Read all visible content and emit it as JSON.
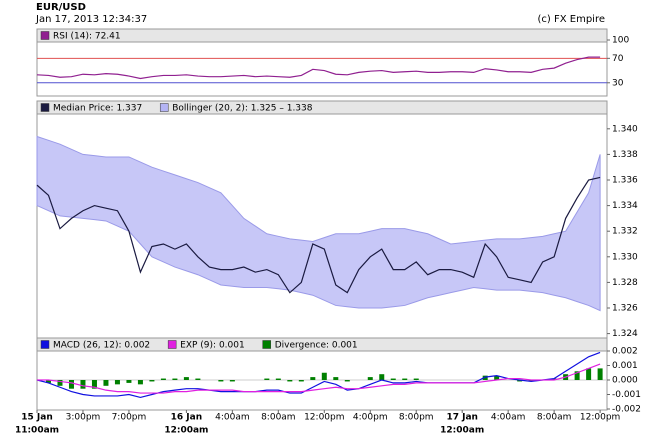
{
  "header": {
    "title": "EUR/USD",
    "timestamp": "Jan 17, 2013 12:34:37",
    "credit": "(c) FX Empire"
  },
  "chart_data": [
    {
      "type": "line",
      "xlim": [
        0,
        49.6
      ],
      "ylim": [
        10,
        100
      ],
      "yticks": [
        100,
        70,
        30
      ],
      "levels": [
        {
          "value": 70,
          "color": "#e05050"
        },
        {
          "value": 30,
          "color": "#5050d0"
        }
      ],
      "x": [
        0,
        1,
        2,
        3,
        4,
        5,
        6,
        7,
        8,
        9,
        10,
        11,
        12,
        13,
        14,
        15,
        16,
        17,
        18,
        19,
        20,
        21,
        22,
        23,
        24,
        25,
        26,
        27,
        28,
        29,
        30,
        31,
        32,
        33,
        34,
        35,
        36,
        37,
        38,
        39,
        40,
        41,
        42,
        43,
        44,
        45,
        46,
        47,
        48,
        49
      ],
      "series": [
        {
          "name": "RSI (14): 72.41",
          "color": "#902090",
          "type": "line",
          "values": [
            43,
            42,
            39,
            40,
            44,
            43,
            45,
            44,
            41,
            37,
            40,
            42,
            42,
            43,
            41,
            40,
            40,
            41,
            42,
            40,
            41,
            40,
            39,
            42,
            52,
            50,
            44,
            43,
            47,
            49,
            50,
            47,
            48,
            49,
            47,
            47,
            48,
            48,
            47,
            53,
            51,
            48,
            48,
            47,
            52,
            54,
            62,
            68,
            72,
            72
          ]
        }
      ]
    },
    {
      "type": "line",
      "xlim": [
        0,
        49.6
      ],
      "ylim": [
        1.3235,
        1.341
      ],
      "yticks": [
        {
          "value": 1.34,
          "label": "1.340"
        },
        {
          "value": 1.338,
          "label": "1.338"
        },
        {
          "value": 1.336,
          "label": "1.336"
        },
        {
          "value": 1.334,
          "label": "1.334"
        },
        {
          "value": 1.332,
          "label": "1.332"
        },
        {
          "value": 1.33,
          "label": "1.330"
        },
        {
          "value": 1.328,
          "label": "1.328"
        },
        {
          "value": 1.326,
          "label": "1.326"
        },
        {
          "value": 1.324,
          "label": "1.324"
        }
      ],
      "x": [
        0,
        1,
        2,
        3,
        4,
        5,
        6,
        7,
        8,
        9,
        10,
        11,
        12,
        13,
        14,
        15,
        16,
        17,
        18,
        19,
        20,
        21,
        22,
        23,
        24,
        25,
        26,
        27,
        28,
        29,
        30,
        31,
        32,
        33,
        34,
        35,
        36,
        37,
        38,
        39,
        40,
        41,
        42,
        43,
        44,
        45,
        46,
        47,
        48,
        49
      ],
      "series": [
        {
          "name": "Median Price: 1.337",
          "color": "#1a1a40",
          "type": "line",
          "values": [
            1.3356,
            1.3348,
            1.3322,
            1.333,
            1.3336,
            1.334,
            1.3338,
            1.3336,
            1.332,
            1.3288,
            1.3308,
            1.331,
            1.3306,
            1.331,
            1.33,
            1.3292,
            1.329,
            1.329,
            1.3292,
            1.3288,
            1.329,
            1.3286,
            1.3272,
            1.328,
            1.331,
            1.3306,
            1.3278,
            1.3272,
            1.329,
            1.33,
            1.3306,
            1.329,
            1.329,
            1.3296,
            1.3286,
            1.329,
            1.329,
            1.3288,
            1.3284,
            1.331,
            1.33,
            1.3284,
            1.3282,
            1.328,
            1.3296,
            1.33,
            1.333,
            1.3346,
            1.336,
            1.3362
          ]
        },
        {
          "name": "Bollinger (20, 2): 1.325 – 1.338",
          "color": "#b4b4f4",
          "type": "band",
          "upper": [
            1.3394,
            1.3391,
            1.3388,
            1.3384,
            1.338,
            1.3379,
            1.3378,
            1.3378,
            1.3378,
            1.3374,
            1.337,
            1.3367,
            1.3364,
            1.3361,
            1.3358,
            1.3354,
            1.335,
            1.334,
            1.333,
            1.3324,
            1.3318,
            1.3316,
            1.3314,
            1.3313,
            1.3312,
            1.3315,
            1.3318,
            1.3318,
            1.3318,
            1.332,
            1.3322,
            1.3322,
            1.3322,
            1.332,
            1.3318,
            1.3314,
            1.331,
            1.3311,
            1.3312,
            1.3313,
            1.3314,
            1.3314,
            1.3314,
            1.3315,
            1.3316,
            1.3318,
            1.332,
            1.3335,
            1.335,
            1.338
          ],
          "lower": [
            1.334,
            1.3336,
            1.3332,
            1.3331,
            1.333,
            1.3329,
            1.3328,
            1.3324,
            1.332,
            1.331,
            1.33,
            1.3296,
            1.3292,
            1.3289,
            1.3286,
            1.3282,
            1.3278,
            1.3277,
            1.3276,
            1.3276,
            1.3276,
            1.3275,
            1.3274,
            1.3272,
            1.327,
            1.3266,
            1.3262,
            1.3261,
            1.326,
            1.326,
            1.326,
            1.3261,
            1.3262,
            1.3265,
            1.3268,
            1.327,
            1.3272,
            1.3274,
            1.3276,
            1.3275,
            1.3274,
            1.3274,
            1.3274,
            1.3273,
            1.3272,
            1.327,
            1.3268,
            1.3265,
            1.3262,
            1.3258
          ]
        }
      ]
    },
    {
      "type": "line",
      "xlim": [
        0,
        49.6
      ],
      "ylim": [
        -0.002,
        0.002
      ],
      "yticks": [
        0.002,
        0.001,
        {
          "value": 0,
          "label": "0.000"
        },
        -0.001,
        -0.002
      ],
      "xticks": [
        {
          "value": 0,
          "label": "15 Jan",
          "sublabel": "11:00am"
        },
        {
          "value": 4,
          "label": "3:00pm"
        },
        {
          "value": 8,
          "label": "7:00pm"
        },
        {
          "value": 13,
          "label": "16 Jan",
          "sublabel": "12:00am"
        },
        {
          "value": 17,
          "label": "4:00am"
        },
        {
          "value": 21,
          "label": "8:00am"
        },
        {
          "value": 25,
          "label": "12:00pm"
        },
        {
          "value": 29,
          "label": "4:00pm"
        },
        {
          "value": 33,
          "label": "8:00pm"
        },
        {
          "value": 37,
          "label": "17 Jan",
          "sublabel": "12:00am"
        },
        {
          "value": 41,
          "label": "4:00am"
        },
        {
          "value": 45,
          "label": "8:00am"
        },
        {
          "value": 49,
          "label": "12:00pm"
        }
      ],
      "x": [
        0,
        1,
        2,
        3,
        4,
        5,
        6,
        7,
        8,
        9,
        10,
        11,
        12,
        13,
        14,
        15,
        16,
        17,
        18,
        19,
        20,
        21,
        22,
        23,
        24,
        25,
        26,
        27,
        28,
        29,
        30,
        31,
        32,
        33,
        34,
        35,
        36,
        37,
        38,
        39,
        40,
        41,
        42,
        43,
        44,
        45,
        46,
        47,
        48,
        49
      ],
      "series": [
        {
          "name": "MACD (26, 12): 0.002",
          "color": "#1010e0",
          "type": "line",
          "values": [
            0,
            -0.0002,
            -0.0005,
            -0.0008,
            -0.001,
            -0.0011,
            -0.0011,
            -0.0011,
            -0.001,
            -0.0012,
            -0.001,
            -0.0008,
            -0.0007,
            -0.0006,
            -0.0006,
            -0.0007,
            -0.0008,
            -0.0008,
            -0.0008,
            -0.0008,
            -0.0007,
            -0.0007,
            -0.0009,
            -0.0009,
            -0.0005,
            -0.0001,
            -0.0003,
            -0.0007,
            -0.0006,
            -0.0003,
            0,
            -0.0002,
            -0.0002,
            -0.0001,
            -0.0002,
            -0.0002,
            -0.0002,
            -0.0002,
            -0.0002,
            0.0002,
            0.0003,
            0.0001,
            0,
            -0.0001,
            0,
            0.0001,
            0.0006,
            0.0011,
            0.0016,
            0.0019
          ]
        },
        {
          "name": "EXP (9): 0.001",
          "color": "#e020e0",
          "type": "line",
          "values": [
            0,
            0,
            -0.0001,
            -0.0002,
            -0.0004,
            -0.0005,
            -0.0007,
            -0.0008,
            -0.0008,
            -0.0009,
            -0.0009,
            -0.0009,
            -0.0008,
            -0.0008,
            -0.0007,
            -0.0007,
            -0.0007,
            -0.0007,
            -0.0008,
            -0.0008,
            -0.0008,
            -0.0008,
            -0.0008,
            -0.0008,
            -0.0007,
            -0.0006,
            -0.0005,
            -0.0006,
            -0.0006,
            -0.0005,
            -0.0004,
            -0.0003,
            -0.0003,
            -0.0002,
            -0.0002,
            -0.0002,
            -0.0002,
            -0.0002,
            -0.0002,
            -0.0001,
            0,
            0.0001,
            0.0001,
            0,
            0,
            0,
            0.0002,
            0.0005,
            0.0008,
            0.0011
          ]
        },
        {
          "name": "Divergence: 0.001",
          "color": "#008000",
          "type": "bar",
          "values": [
            0,
            -0.0002,
            -0.0004,
            -0.0006,
            -0.0006,
            -0.0006,
            -0.0004,
            -0.0003,
            -0.0002,
            -0.0003,
            -0.0001,
            0.0001,
            0.0001,
            0.0002,
            0.0001,
            0,
            -0.0001,
            -0.0001,
            0,
            0,
            0.0001,
            0.0001,
            -0.0001,
            -0.0001,
            0.0002,
            0.0005,
            0.0002,
            -0.0001,
            0,
            0.0002,
            0.0004,
            0.0001,
            0.0001,
            0.0001,
            0,
            0,
            0,
            0,
            0,
            0.0003,
            0.0003,
            0,
            -0.0001,
            -0.0001,
            0,
            0.0001,
            0.0004,
            0.0006,
            0.0008,
            0.0008
          ]
        }
      ]
    }
  ]
}
